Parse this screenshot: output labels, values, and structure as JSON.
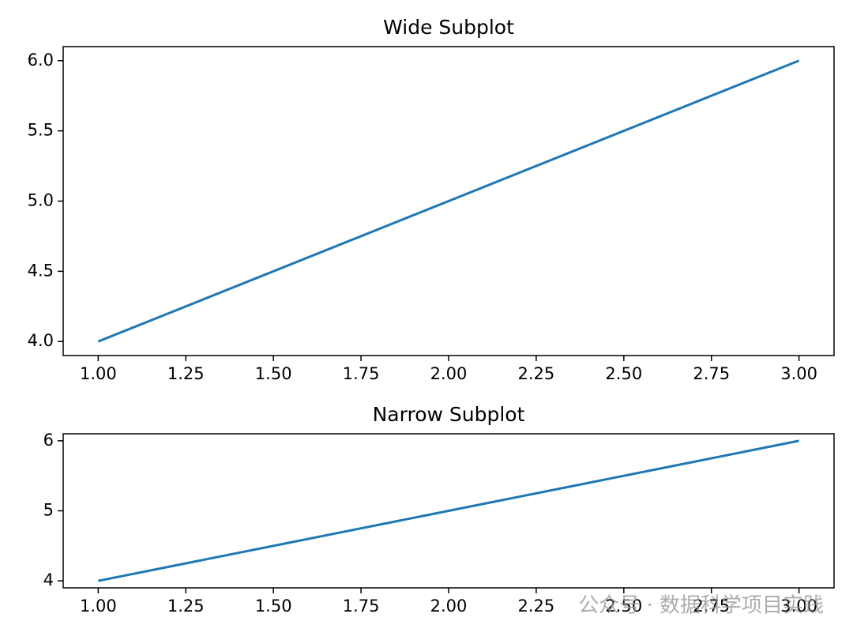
{
  "chart_data": [
    {
      "type": "line",
      "title": "Wide Subplot",
      "x": [
        1,
        2,
        3
      ],
      "series": [
        {
          "color": "#1f77b4",
          "values": [
            4,
            5,
            6
          ]
        }
      ],
      "xlim": [
        0.9,
        3.1
      ],
      "ylim": [
        3.9,
        6.1
      ],
      "xticks": [
        {
          "value": 1,
          "label": "1.00"
        },
        {
          "value": 1.25,
          "label": "1.25"
        },
        {
          "value": 1.5,
          "label": "1.50"
        },
        {
          "value": 1.75,
          "label": "1.75"
        },
        {
          "value": 2,
          "label": "2.00"
        },
        {
          "value": 2.25,
          "label": "2.25"
        },
        {
          "value": 2.5,
          "label": "2.50"
        },
        {
          "value": 2.75,
          "label": "2.75"
        },
        {
          "value": 3,
          "label": "3.00"
        }
      ],
      "yticks": [
        {
          "value": 4,
          "label": "4.0"
        },
        4.5,
        {
          "value": 5,
          "label": "5.0"
        },
        5.5,
        {
          "value": 6,
          "label": "6.0"
        }
      ],
      "grid": false
    },
    {
      "type": "line",
      "title": "Narrow Subplot",
      "x": [
        1,
        2,
        3
      ],
      "series": [
        {
          "color": "#1f77b4",
          "values": [
            4,
            5,
            6
          ]
        }
      ],
      "xlim": [
        0.9,
        3.1
      ],
      "ylim": [
        3.9,
        6.1
      ],
      "xticks": [
        {
          "value": 1,
          "label": "1.00"
        },
        {
          "value": 1.25,
          "label": "1.25"
        },
        {
          "value": 1.5,
          "label": "1.50"
        },
        {
          "value": 1.75,
          "label": "1.75"
        },
        {
          "value": 2,
          "label": "2.00"
        },
        {
          "value": 2.25,
          "label": "2.25"
        },
        {
          "value": 2.5,
          "label": "2.50"
        },
        {
          "value": 2.75,
          "label": "2.75"
        },
        {
          "value": 3,
          "label": "3.00"
        }
      ],
      "yticks": [
        4,
        5,
        6
      ],
      "grid": false
    }
  ],
  "watermark": "公众号 · 数据科学项目实践"
}
